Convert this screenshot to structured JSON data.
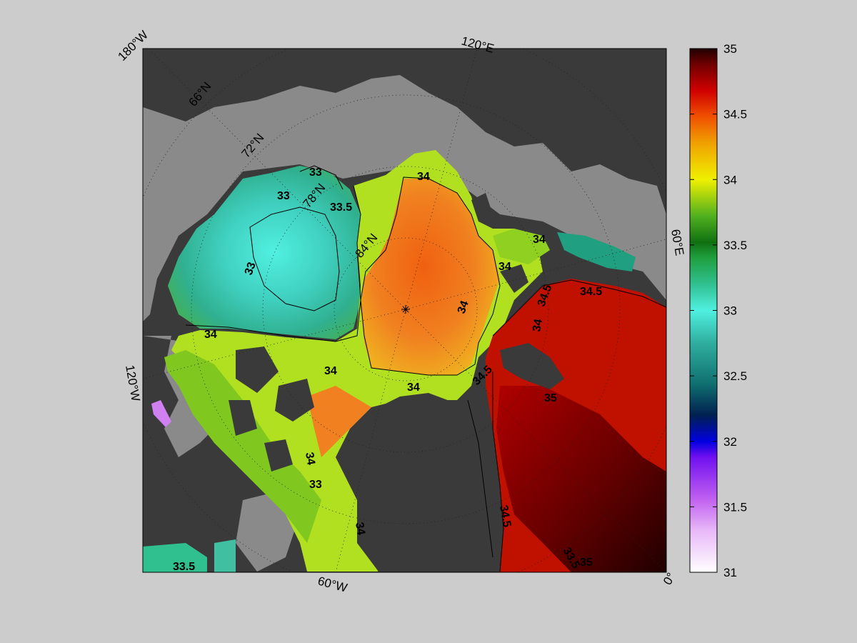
{
  "map": {
    "projection": "north-polar-stereographic",
    "longitude_labels": [
      "180°W",
      "120°E",
      "60°E",
      "120°W",
      "60°W",
      "0°"
    ],
    "latitude_labels": [
      "66°N",
      "72°N",
      "78°N",
      "84°N"
    ],
    "contour_labels": [
      "33",
      "33",
      "33",
      "33.5",
      "33.5",
      "34",
      "34",
      "34",
      "34",
      "34",
      "34",
      "34",
      "34",
      "34",
      "34",
      "34.5",
      "34.5",
      "34.5",
      "34.5",
      "33.5",
      "33",
      "35",
      "35"
    ]
  },
  "colorbar": {
    "min": 31,
    "max": 35,
    "ticks": [
      "35",
      "34.5",
      "34",
      "33.5",
      "33",
      "32.5",
      "32",
      "31.5",
      "31"
    ],
    "tick_values": [
      35,
      34.5,
      34,
      33.5,
      33,
      32.5,
      32,
      31.5,
      31
    ]
  },
  "colors": {
    "figure_background": "#cccccc",
    "land": "#3a3a3a",
    "shelf": "#8a8a8a"
  }
}
